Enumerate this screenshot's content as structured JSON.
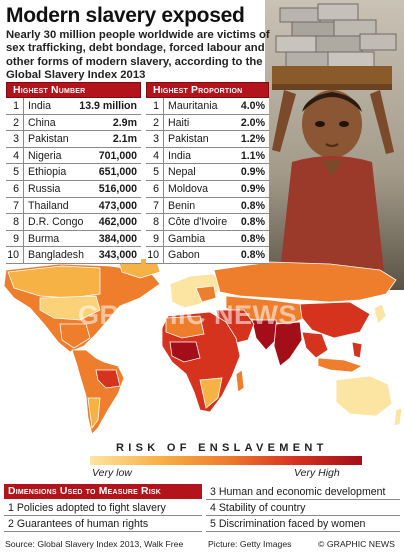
{
  "title": "Modern slavery exposed",
  "subtitle": "Nearly 30 million people worldwide are victims of sex trafficking, debt bondage, forced labour and other forms of modern slavery, according to the Global Slavery Index 2013",
  "highest_number": {
    "heading": "Highest Number",
    "rows": [
      {
        "rank": "1",
        "country": "India",
        "value": "13.9 million"
      },
      {
        "rank": "2",
        "country": "China",
        "value": "2.9m"
      },
      {
        "rank": "3",
        "country": "Pakistan",
        "value": "2.1m"
      },
      {
        "rank": "4",
        "country": "Nigeria",
        "value": "701,000"
      },
      {
        "rank": "5",
        "country": "Ethiopia",
        "value": "651,000"
      },
      {
        "rank": "6",
        "country": "Russia",
        "value": "516,000"
      },
      {
        "rank": "7",
        "country": "Thailand",
        "value": "473,000"
      },
      {
        "rank": "8",
        "country": "D.R. Congo",
        "value": "462,000"
      },
      {
        "rank": "9",
        "country": "Burma",
        "value": "384,000"
      },
      {
        "rank": "10",
        "country": "Bangladesh",
        "value": "343,000"
      }
    ]
  },
  "highest_proportion": {
    "heading": "Highest Proportion",
    "rows": [
      {
        "rank": "1",
        "country": "Mauritania",
        "value": "4.0%"
      },
      {
        "rank": "2",
        "country": "Haiti",
        "value": "2.0%"
      },
      {
        "rank": "3",
        "country": "Pakistan",
        "value": "1.2%"
      },
      {
        "rank": "4",
        "country": "India",
        "value": "1.1%"
      },
      {
        "rank": "5",
        "country": "Nepal",
        "value": "0.9%"
      },
      {
        "rank": "6",
        "country": "Moldova",
        "value": "0.9%"
      },
      {
        "rank": "7",
        "country": "Benin",
        "value": "0.8%"
      },
      {
        "rank": "8",
        "country": "Côte d'Ivoire",
        "value": "0.8%"
      },
      {
        "rank": "9",
        "country": "Gambia",
        "value": "0.8%"
      },
      {
        "rank": "10",
        "country": "Gabon",
        "value": "0.8%"
      }
    ]
  },
  "watermark": "GRAPHIC NEWS",
  "legend": {
    "title": "RISK OF ENSLAVEMENT",
    "low": "Very low",
    "high": "Very High",
    "colors": [
      "#fce5a3",
      "#f7b245",
      "#ee7d2c",
      "#d6331f",
      "#a30e18"
    ]
  },
  "dimensions": {
    "heading": "Dimensions Used to Measure Risk",
    "items": [
      "1 Policies adopted to fight slavery",
      "2 Guarantees of human rights",
      "3 Human and economic development",
      "4 Stability of country",
      "5 Discrimination faced by women"
    ]
  },
  "footer": {
    "source": "Source: Global Slavery Index 2013, Walk Free",
    "picture": "Picture: Getty Images",
    "copyright": "© GRAPHIC NEWS"
  },
  "accent_color": "#b3131b"
}
